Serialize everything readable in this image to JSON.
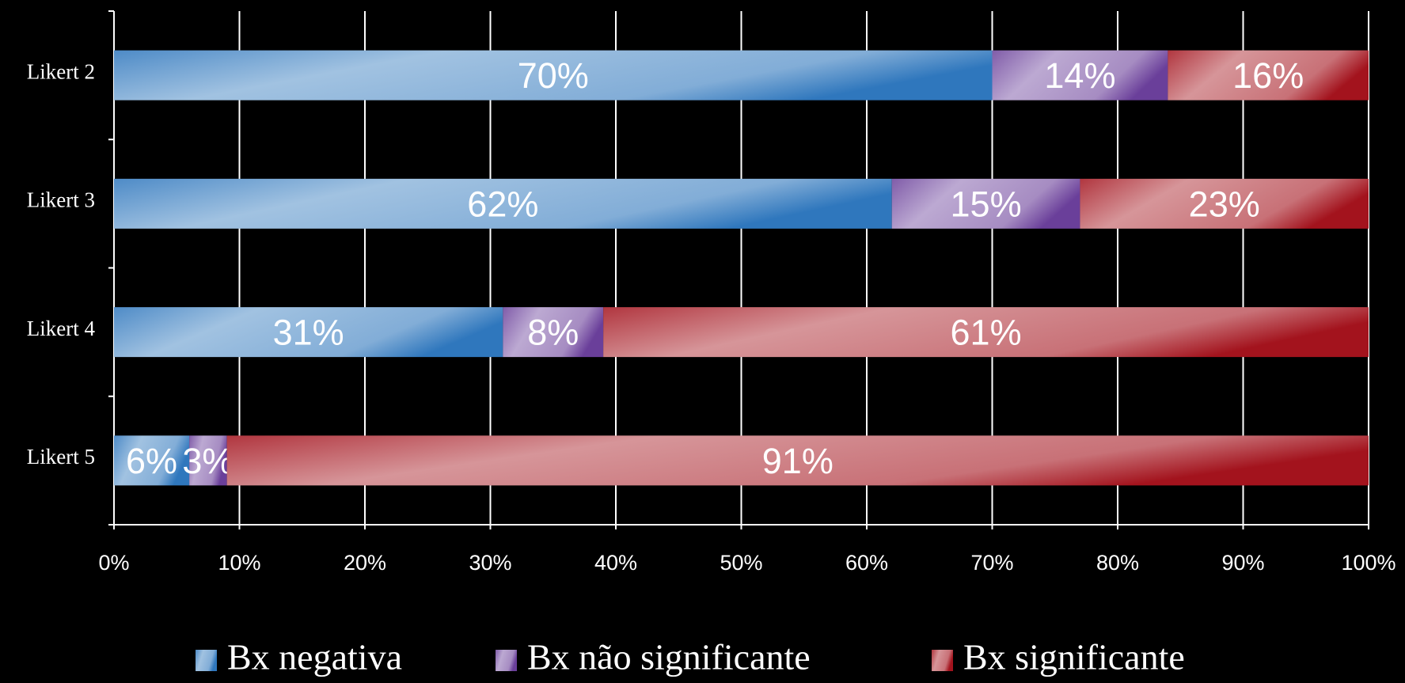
{
  "chart_data": {
    "type": "stacked_barh",
    "categories": [
      "Likert 2",
      "Likert 3",
      "Likert 4",
      "Likert 5"
    ],
    "series": [
      {
        "name": "Bx negativa",
        "color": "#2f77bd",
        "values": [
          70,
          62,
          31,
          6
        ],
        "value_labels": [
          "70%",
          "62%",
          "31%",
          "6%"
        ]
      },
      {
        "name": "Bx não significante",
        "color": "#6a3f9a",
        "values": [
          14,
          15,
          8,
          3
        ],
        "value_labels": [
          "14%",
          "15%",
          "8%",
          "3%"
        ]
      },
      {
        "name": "Bx significante",
        "color": "#a3131d",
        "values": [
          16,
          23,
          61,
          91
        ],
        "value_labels": [
          "16%",
          "23%",
          "61%",
          "91%"
        ]
      }
    ],
    "xlim": [
      0,
      100
    ],
    "xticks": [
      {
        "value": 0,
        "label": "0%"
      },
      {
        "value": 10,
        "label": "10%"
      },
      {
        "value": 20,
        "label": "20%"
      },
      {
        "value": 30,
        "label": "30%"
      },
      {
        "value": 40,
        "label": "40%"
      },
      {
        "value": 50,
        "label": "50%"
      },
      {
        "value": 60,
        "label": "60%"
      },
      {
        "value": 70,
        "label": "70%"
      },
      {
        "value": 80,
        "label": "80%"
      },
      {
        "value": 90,
        "label": "90%"
      },
      {
        "value": 100,
        "label": "100%"
      }
    ],
    "grid": true,
    "legend": "bottom"
  }
}
